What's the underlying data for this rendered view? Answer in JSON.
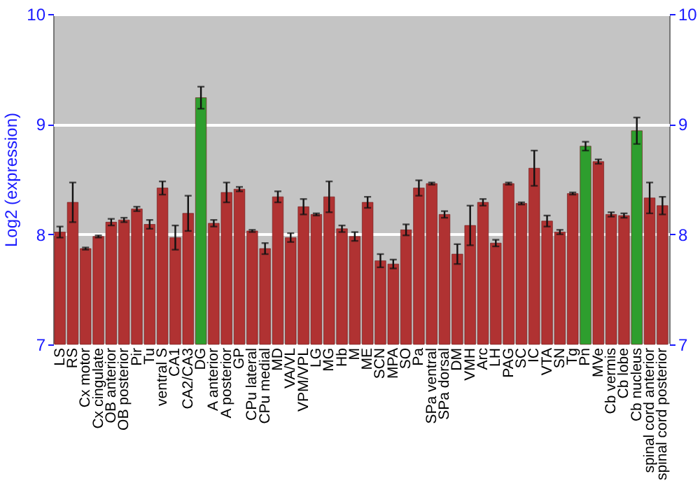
{
  "chart_data": {
    "type": "bar",
    "ylabel": "Log2 (expression)",
    "categories": [
      "LS",
      "RS",
      "Cx motor",
      "Cx cingulate",
      "OB anterior",
      "OB posterior",
      "Pir",
      "Tu",
      "ventral S",
      "CA1",
      "CA2/CA3",
      "DG",
      "A anterior",
      "A posterior",
      "GP",
      "CPu lateral",
      "CPu medial",
      "MD",
      "VA/VL",
      "VPM/VPL",
      "LG",
      "MG",
      "Hb",
      "M",
      "ME",
      "SCN",
      "MPA",
      "SO",
      "Pa",
      "SPa ventral",
      "SPa dorsal",
      "DM",
      "VMH",
      "Arc",
      "LH",
      "PAG",
      "SC",
      "IC",
      "VTA",
      "SN",
      "Tg",
      "Pn",
      "MVe",
      "Cb vermis",
      "Cb lobe",
      "Cb nucleus",
      "spinal cord anterior",
      "spinal cord posterior"
    ],
    "values": [
      8.02,
      8.29,
      7.87,
      7.98,
      8.11,
      8.13,
      8.23,
      8.09,
      8.42,
      7.97,
      8.19,
      9.24,
      8.1,
      8.38,
      8.41,
      8.03,
      7.87,
      8.34,
      7.97,
      8.25,
      8.18,
      8.34,
      8.05,
      7.98,
      8.29,
      7.76,
      7.73,
      8.04,
      8.42,
      8.46,
      8.18,
      7.82,
      8.08,
      8.29,
      7.92,
      8.46,
      8.28,
      8.6,
      8.12,
      8.02,
      8.37,
      8.8,
      8.66,
      8.18,
      8.17,
      8.94,
      8.33,
      8.26
    ],
    "errors": [
      0.05,
      0.18,
      0.01,
      0.01,
      0.03,
      0.02,
      0.02,
      0.04,
      0.06,
      0.11,
      0.16,
      0.1,
      0.03,
      0.09,
      0.02,
      0.01,
      0.05,
      0.05,
      0.04,
      0.07,
      0.01,
      0.14,
      0.03,
      0.04,
      0.05,
      0.06,
      0.04,
      0.05,
      0.07,
      0.01,
      0.03,
      0.09,
      0.18,
      0.03,
      0.03,
      0.01,
      0.01,
      0.16,
      0.05,
      0.02,
      0.01,
      0.04,
      0.02,
      0.02,
      0.02,
      0.12,
      0.14,
      0.08
    ],
    "colors": [
      "#b03232",
      "#b03232",
      "#b03232",
      "#b03232",
      "#b03232",
      "#b03232",
      "#b03232",
      "#b03232",
      "#b03232",
      "#b03232",
      "#b03232",
      "#2e9e2e",
      "#b03232",
      "#b03232",
      "#b03232",
      "#b03232",
      "#b03232",
      "#b03232",
      "#b03232",
      "#b03232",
      "#b03232",
      "#b03232",
      "#b03232",
      "#b03232",
      "#b03232",
      "#b03232",
      "#b03232",
      "#b03232",
      "#b03232",
      "#b03232",
      "#b03232",
      "#b03232",
      "#b03232",
      "#b03232",
      "#b03232",
      "#b03232",
      "#b03232",
      "#b03232",
      "#b03232",
      "#b03232",
      "#b03232",
      "#2e9e2e",
      "#b03232",
      "#b03232",
      "#b03232",
      "#2e9e2e",
      "#b03232",
      "#b03232"
    ],
    "ylim": [
      7,
      10
    ],
    "yticks": [
      7,
      8,
      9,
      10
    ],
    "y2lim": [
      7,
      10
    ],
    "y2ticks": [
      7,
      8,
      9,
      10
    ],
    "grid": "y"
  }
}
